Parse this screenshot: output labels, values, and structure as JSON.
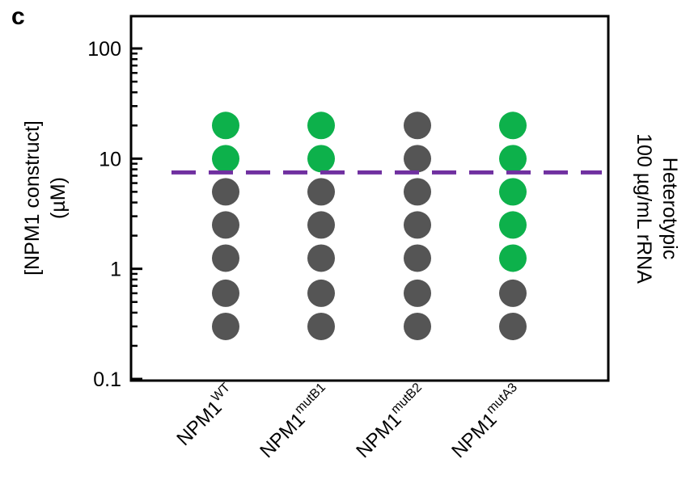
{
  "panel_label": "c",
  "chart_data": {
    "type": "scatter",
    "yscale": "log",
    "ylim": [
      0.1,
      200
    ],
    "ylabel_lines": [
      "[NPM1 construct]",
      "(µM)"
    ],
    "right_label_lines": [
      "Heterotypic",
      "100 µg/mL rRNA"
    ],
    "yticks": [
      {
        "value": 0.1,
        "label": "0.1"
      },
      {
        "value": 1,
        "label": "1"
      },
      {
        "value": 10,
        "label": "10"
      },
      {
        "value": 100,
        "label": "100"
      }
    ],
    "categories": [
      {
        "base": "NPM1",
        "sup": "WT"
      },
      {
        "base": "NPM1",
        "sup": "mutB1"
      },
      {
        "base": "NPM1",
        "sup": "mutB2"
      },
      {
        "base": "NPM1",
        "sup": "mutA3"
      }
    ],
    "concentrations": [
      0.3,
      0.6,
      1.25,
      2.5,
      5,
      10,
      20
    ],
    "phase_separated": [
      [
        false,
        false,
        false,
        false,
        false,
        true,
        true
      ],
      [
        false,
        false,
        false,
        false,
        false,
        true,
        true
      ],
      [
        false,
        false,
        false,
        false,
        false,
        false,
        false
      ],
      [
        false,
        false,
        true,
        true,
        true,
        true,
        true
      ]
    ],
    "threshold": 7.5,
    "colors": {
      "phase_separated": "#0db14b",
      "mixed": "#555555",
      "threshold": "#7030a0"
    }
  }
}
